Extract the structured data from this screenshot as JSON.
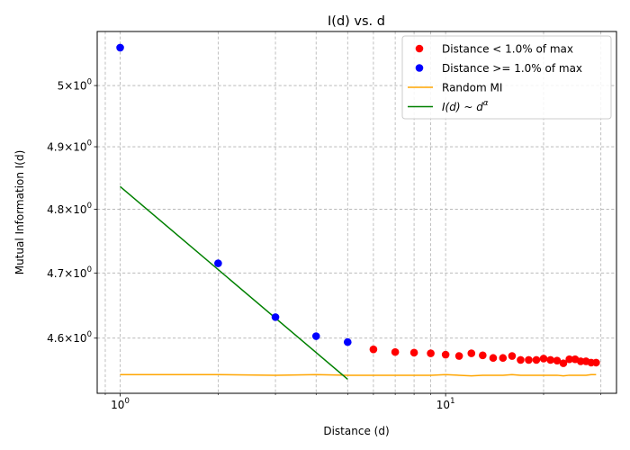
{
  "chart_data": {
    "type": "scatter",
    "title": "I(d) vs. d",
    "xlabel": "Distance (d)",
    "ylabel": "Mutual Information I(d)",
    "xscale": "log",
    "yscale": "log",
    "xlim": [
      0.85,
      33.5
    ],
    "ylim": [
      4.517,
      5.09
    ],
    "grid": true,
    "legend_position": "top-right",
    "x_ticks": [
      {
        "value": 1,
        "base": "10",
        "exp": "0"
      },
      {
        "value": 10,
        "base": "10",
        "exp": "1"
      }
    ],
    "y_ticks": [
      {
        "value": 4.6,
        "mantissa": "4.6",
        "base": "10",
        "exp": "0"
      },
      {
        "value": 4.7,
        "mantissa": "4.7",
        "base": "10",
        "exp": "0"
      },
      {
        "value": 4.8,
        "mantissa": "4.8",
        "base": "10",
        "exp": "0"
      },
      {
        "value": 4.9,
        "mantissa": "4.9",
        "base": "10",
        "exp": "0"
      },
      {
        "value": 5.0,
        "mantissa": "5",
        "base": "10",
        "exp": "0"
      }
    ],
    "series": [
      {
        "name": "Distance < 1.0% of max",
        "kind": "scatter",
        "color": "#ff0000",
        "x": [
          6,
          7,
          8,
          9,
          10,
          11,
          12,
          13,
          14,
          15,
          16,
          17,
          18,
          19,
          20,
          21,
          22,
          23,
          24,
          25,
          26,
          27,
          28,
          29
        ],
        "y": [
          4.583,
          4.579,
          4.578,
          4.577,
          4.575,
          4.573,
          4.577,
          4.574,
          4.57,
          4.57,
          4.573,
          4.567,
          4.567,
          4.567,
          4.569,
          4.567,
          4.566,
          4.562,
          4.568,
          4.568,
          4.565,
          4.565,
          4.563,
          4.563
        ]
      },
      {
        "name": "Distance >= 1.0% of max",
        "kind": "scatter",
        "color": "#0000ff",
        "x": [
          1,
          2,
          3,
          4,
          5
        ],
        "y": [
          5.063,
          4.715,
          4.632,
          4.603,
          4.594
        ]
      },
      {
        "name": "Random MI",
        "kind": "line",
        "color": "#ffa500",
        "x": [
          1,
          2,
          3,
          4,
          5,
          6,
          7,
          8,
          9,
          10,
          11,
          12,
          13,
          14,
          15,
          16,
          17,
          18,
          19,
          20,
          21,
          22,
          23,
          24,
          25,
          26,
          27,
          28,
          29
        ],
        "y": [
          4.545,
          4.545,
          4.544,
          4.545,
          4.544,
          4.544,
          4.544,
          4.544,
          4.544,
          4.545,
          4.544,
          4.543,
          4.544,
          4.544,
          4.544,
          4.545,
          4.544,
          4.544,
          4.544,
          4.544,
          4.544,
          4.544,
          4.543,
          4.544,
          4.544,
          4.544,
          4.544,
          4.545,
          4.545
        ]
      },
      {
        "name_parts": {
          "main": "I",
          "args": "(d) ~ d",
          "exp": "α"
        },
        "kind": "line",
        "color": "#008000",
        "x": [
          1,
          5
        ],
        "y": [
          4.836,
          4.538
        ]
      }
    ]
  }
}
